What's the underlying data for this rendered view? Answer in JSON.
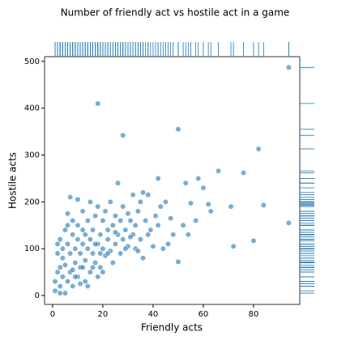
{
  "chart_data": {
    "type": "scatter",
    "title": "Number of friendly act vs hostile act in a game",
    "xlabel": "Friendly acts",
    "ylabel": "Hostile acts",
    "color": "#1f77b4",
    "rug": true,
    "xlim": [
      -3.2,
      98.4
    ],
    "xticks": [
      0,
      20,
      40,
      60,
      80
    ],
    "ylim": [
      -19,
      510
    ],
    "yticks": [
      0,
      100,
      200,
      300,
      400,
      500
    ],
    "x": [
      94,
      18,
      28,
      50,
      82,
      76,
      66,
      94,
      80,
      72,
      50,
      58,
      53,
      62,
      71,
      55,
      60,
      84,
      42,
      52,
      54,
      57,
      63,
      48,
      46,
      44,
      40,
      38,
      36,
      33,
      1,
      1,
      2,
      2,
      3,
      3,
      3,
      4,
      4,
      4,
      5,
      5,
      5,
      6,
      6,
      6,
      7,
      7,
      7,
      8,
      8,
      8,
      9,
      9,
      10,
      10,
      10,
      10,
      11,
      11,
      12,
      12,
      12,
      13,
      13,
      14,
      14,
      15,
      15,
      15,
      16,
      16,
      17,
      17,
      18,
      18,
      19,
      19,
      20,
      20,
      21,
      21,
      22,
      22,
      23,
      23,
      24,
      25,
      25,
      26,
      26,
      27,
      27,
      28,
      28,
      29,
      30,
      30,
      31,
      32,
      32,
      33,
      34,
      35,
      35,
      36,
      37,
      38,
      39,
      41,
      42,
      43,
      45,
      47,
      20,
      18,
      14,
      12,
      9,
      16,
      24,
      22,
      6,
      2,
      3,
      8,
      11,
      13,
      17,
      19,
      25,
      29,
      34,
      31
    ],
    "values": [
      487,
      410,
      342,
      355,
      313,
      262,
      266,
      155,
      117,
      105,
      72,
      250,
      240,
      195,
      190,
      197,
      230,
      193,
      250,
      150,
      130,
      160,
      180,
      130,
      110,
      100,
      105,
      130,
      80,
      100,
      10,
      30,
      50,
      90,
      20,
      60,
      120,
      40,
      80,
      100,
      5,
      65,
      140,
      30,
      110,
      175,
      50,
      90,
      210,
      20,
      130,
      160,
      70,
      100,
      40,
      120,
      150,
      205,
      60,
      90,
      110,
      140,
      180,
      75,
      30,
      100,
      160,
      50,
      120,
      200,
      90,
      140,
      70,
      170,
      110,
      190,
      60,
      130,
      100,
      160,
      85,
      180,
      120,
      140,
      95,
      200,
      150,
      110,
      170,
      130,
      240,
      90,
      160,
      120,
      190,
      140,
      105,
      175,
      160,
      130,
      215,
      150,
      180,
      120,
      200,
      220,
      160,
      215,
      140,
      170,
      150,
      190,
      200,
      165,
      50,
      40,
      20,
      60,
      40,
      60,
      70,
      90,
      150,
      110,
      5,
      55,
      25,
      130,
      110,
      90,
      135,
      100,
      95,
      125
    ]
  }
}
